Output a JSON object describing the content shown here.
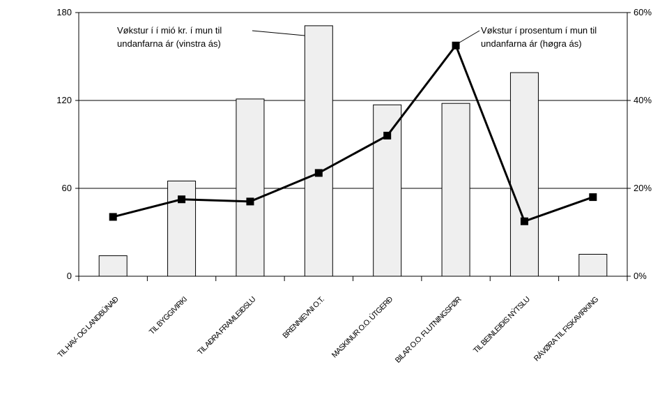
{
  "chart_data": {
    "type": "bar",
    "categories": [
      "TIL HAV- OG LANDBÚNAÐ",
      "TIL BYGGIVIRKI",
      "TIL AÐRA FRAMLEIÐSLU",
      "BRENNIEVNI O.T.",
      "MASKINUR O.O. ÚTGERÐ",
      "BILAR O.O. FLUTNINGSFØR",
      "TIL BEINLEIÐIS NÝTSLU",
      "RÁVØRA TIL FISKAVIRKING"
    ],
    "series": [
      {
        "values": [
          14,
          65,
          121,
          171,
          117,
          118,
          139,
          15
        ],
        "axis": "left",
        "render": "bar",
        "color": "#efefef"
      },
      {
        "values": [
          13.5,
          17.5,
          17.0,
          23.5,
          32.0,
          52.5,
          12.5,
          18.0
        ],
        "axis": "right",
        "render": "line",
        "color": "#000000"
      }
    ],
    "y_left": {
      "range": [
        0,
        180
      ],
      "ticks": [
        0,
        60,
        120,
        180
      ],
      "tick_labels": [
        "0",
        "60",
        "120",
        "180"
      ]
    },
    "y_right": {
      "range": [
        0,
        60
      ],
      "ticks": [
        0,
        20,
        40,
        60
      ],
      "tick_labels": [
        "0%",
        "20%",
        "40%",
        "60%"
      ]
    },
    "grid": "horizontal at major ticks",
    "annotations": [
      {
        "lines": [
          "Vøkstur í í mió kr.  í mun til",
          "undanfarna ár (vinstra ás)"
        ],
        "points_to": "bars"
      },
      {
        "lines": [
          "Vøkstur í prosentum í mun til",
          "undanfarna ár (høgra ás)"
        ],
        "points_to": "line"
      }
    ]
  }
}
